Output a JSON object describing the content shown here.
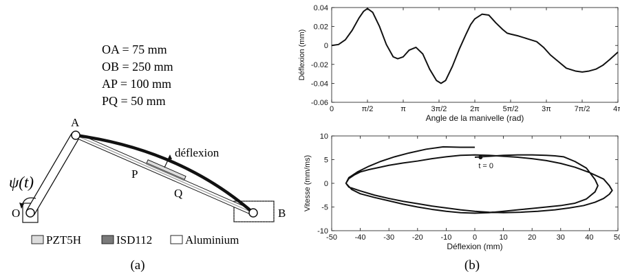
{
  "panel_a": {
    "dims": [
      "OA = 75 mm",
      "OB = 250 mm",
      "AP = 100 mm",
      "PQ = 50 mm"
    ],
    "points": {
      "A": "A",
      "B": "B",
      "O": "O",
      "P": "P",
      "Q": "Q"
    },
    "deflection_label": "déflexion",
    "angle_label": "ψ(t)",
    "legend": [
      {
        "label": "PZT5H",
        "color": "#dcdcdc"
      },
      {
        "label": "ISD112",
        "color": "#7a7a7a"
      },
      {
        "label": "Aluminium",
        "color": "#ffffff"
      }
    ],
    "caption": "(a)"
  },
  "panel_b": {
    "caption": "(b)"
  },
  "chart_data": [
    {
      "type": "line",
      "xlabel": "Angle de la manivelle (rad)",
      "ylabel": "Déflexion (mm)",
      "xlim": [
        0,
        12.566
      ],
      "ylim": [
        -0.06,
        0.04
      ],
      "xtick_values": [
        0,
        1.5708,
        3.1416,
        4.7124,
        6.2832,
        7.854,
        9.4248,
        10.9956,
        12.5664
      ],
      "xtick_labels": [
        "0",
        "π/2",
        "π",
        "3π/2",
        "2π",
        "5π/2",
        "3π",
        "7π/2",
        "4π"
      ],
      "ytick_values": [
        -0.06,
        -0.04,
        -0.02,
        0,
        0.02,
        0.04
      ],
      "ytick_labels": [
        "-0.06",
        "-0.04",
        "-0.02",
        "0",
        "0.02",
        "0.04"
      ],
      "grid": false,
      "series": [
        {
          "x": [
            0,
            0.3,
            0.6,
            0.9,
            1.2,
            1.4,
            1.57,
            1.8,
            2.1,
            2.4,
            2.7,
            2.9,
            3.14,
            3.4,
            3.7,
            4.0,
            4.3,
            4.6,
            4.8,
            5.0,
            5.3,
            5.6,
            5.9,
            6.1,
            6.28,
            6.6,
            6.9,
            7.2,
            7.5,
            7.7,
            7.85,
            8.2,
            8.6,
            9.0,
            9.3,
            9.6,
            10.0,
            10.3,
            10.7,
            11.0,
            11.3,
            11.6,
            11.9,
            12.2,
            12.566
          ],
          "y": [
            0,
            0.001,
            0.006,
            0.016,
            0.029,
            0.036,
            0.039,
            0.035,
            0.02,
            0.001,
            -0.012,
            -0.014,
            -0.012,
            -0.005,
            -0.002,
            -0.009,
            -0.025,
            -0.037,
            -0.04,
            -0.037,
            -0.022,
            -0.004,
            0.012,
            0.022,
            0.028,
            0.033,
            0.032,
            0.024,
            0.017,
            0.013,
            0.012,
            0.01,
            0.007,
            0.004,
            -0.002,
            -0.01,
            -0.018,
            -0.024,
            -0.027,
            -0.028,
            -0.027,
            -0.025,
            -0.021,
            -0.015,
            -0.007
          ]
        }
      ]
    },
    {
      "type": "line",
      "xlabel": "Déflexion (mm)",
      "ylabel": "Vitesse (mm/ms)",
      "xlim": [
        -50,
        50
      ],
      "ylim": [
        -10,
        10
      ],
      "xtick_values": [
        -50,
        -40,
        -30,
        -20,
        -10,
        0,
        10,
        20,
        30,
        40,
        50
      ],
      "xtick_labels": [
        "-50",
        "-40",
        "-30",
        "-20",
        "-10",
        "0",
        "10",
        "20",
        "30",
        "40",
        "50"
      ],
      "ytick_values": [
        -10,
        -5,
        0,
        5,
        10
      ],
      "ytick_labels": [
        "-10",
        "-5",
        "0",
        "5",
        "10"
      ],
      "grid": false,
      "annotation": {
        "text": "t = 0",
        "x": 0,
        "y": 5.5
      },
      "series": [
        {
          "x": [
            0,
            5,
            10,
            15,
            20,
            25,
            28,
            31,
            35,
            39,
            42,
            43,
            42,
            39,
            35,
            30,
            25,
            20,
            15,
            10,
            5,
            0,
            -5,
            -10,
            -15,
            -20,
            -25,
            -30,
            -35,
            -40,
            -43,
            -45,
            -44,
            -42,
            -40,
            -37,
            -33,
            -30,
            -25,
            -20,
            -15,
            -10,
            -5,
            0,
            5,
            10,
            15,
            20,
            25,
            30,
            35,
            40,
            45,
            47,
            48,
            47,
            45,
            42,
            38,
            33,
            28,
            22,
            16,
            10,
            5,
            0,
            -5,
            -10,
            -15,
            -20,
            -25,
            -30,
            -35,
            -40,
            -44,
            -45,
            -44,
            -41,
            -37,
            -33,
            -28,
            -23,
            -17,
            -11,
            -5,
            0
          ],
          "y": [
            5.5,
            5.7,
            5.9,
            6.0,
            6.0,
            5.9,
            5.8,
            5.6,
            4.6,
            3.2,
            0.8,
            -0.5,
            -1.8,
            -3.3,
            -4.2,
            -4.7,
            -5.0,
            -5.3,
            -5.6,
            -5.9,
            -6.2,
            -6.3,
            -6.2,
            -5.9,
            -5.5,
            -5.0,
            -4.4,
            -3.7,
            -3.0,
            -2.2,
            -1.3,
            0.0,
            1.0,
            1.8,
            2.4,
            2.9,
            3.4,
            3.8,
            4.3,
            4.7,
            5.2,
            5.6,
            5.9,
            6.0,
            5.9,
            5.7,
            5.5,
            5.2,
            4.8,
            4.2,
            3.4,
            2.3,
            0.9,
            -0.5,
            -1.5,
            -2.3,
            -3.2,
            -4.0,
            -4.7,
            -5.2,
            -5.6,
            -5.9,
            -6.1,
            -6.2,
            -6.1,
            -5.9,
            -5.6,
            -5.2,
            -4.8,
            -4.3,
            -3.8,
            -3.2,
            -2.5,
            -1.6,
            -0.8,
            0.0,
            1.2,
            2.4,
            3.6,
            4.6,
            5.6,
            6.4,
            7.2,
            7.7,
            7.6,
            7.6
          ]
        }
      ]
    }
  ]
}
